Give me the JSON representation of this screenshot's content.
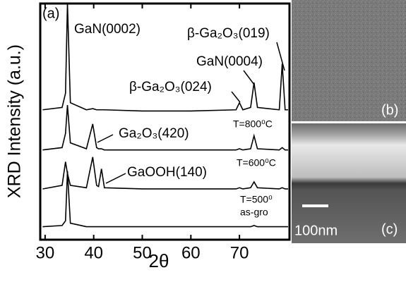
{
  "chart_data": {
    "type": "line",
    "panel_label": "(a)",
    "ylabel": "XRD Intensity (a.u.)",
    "xlabel": "2θ",
    "xlim": [
      29,
      80.3
    ],
    "xticks": [
      30,
      40,
      50,
      60,
      70
    ],
    "ylim": [
      0,
      100
    ],
    "annotations": [
      "GaN(0002)",
      "β-Ga₂O₃(019)",
      "GaN(0004)",
      "β-Ga₂O₃(024)",
      "Ga₂O₃(420)",
      "GaOOH(140)"
    ],
    "x": [
      29.5,
      33.5,
      34.2,
      34.6,
      35.2,
      38.5,
      39.8,
      40.6,
      41,
      41.6,
      42.2,
      50,
      60,
      69.3,
      70,
      70.7,
      72.3,
      73,
      73.7,
      78.2,
      78.8,
      79.4,
      80
    ],
    "series": [
      {
        "name": "T=800⁰C",
        "color": "#000000",
        "values": [
          55,
          56,
          62,
          100,
          58,
          55,
          55.5,
          55,
          55,
          55,
          55,
          54.5,
          54.5,
          55,
          58,
          55,
          56,
          66.5,
          56,
          55,
          74.5,
          55,
          55
        ]
      },
      {
        "name": "T=600⁰C",
        "color": "#000000",
        "values": [
          38,
          39,
          45,
          57,
          41,
          38.5,
          49,
          39,
          38.5,
          38.5,
          38,
          38,
          38,
          38,
          38.5,
          38,
          38.5,
          44,
          38.5,
          38,
          39,
          38,
          38
        ]
      },
      {
        "name": "T=500⁰",
        "color": "#000000",
        "values": [
          21.5,
          23,
          33,
          28,
          23,
          22,
          35,
          23,
          22.5,
          30,
          22,
          21.5,
          21.5,
          21.5,
          22,
          21.5,
          22,
          24.5,
          22,
          21.5,
          22,
          21.5,
          21.5
        ]
      },
      {
        "name": "as-gro",
        "color": "#000000",
        "values": [
          5.5,
          6,
          8,
          29,
          7,
          5.5,
          5.5,
          5.5,
          5.5,
          5.5,
          5.5,
          5.5,
          5.5,
          5.5,
          5.5,
          5.5,
          5.5,
          6,
          5.5,
          5.5,
          5.5,
          5.5,
          5.5
        ]
      }
    ]
  },
  "images": [
    {
      "label": "(b)"
    },
    {
      "label": "(c)",
      "scale_bar": "100nm"
    }
  ]
}
